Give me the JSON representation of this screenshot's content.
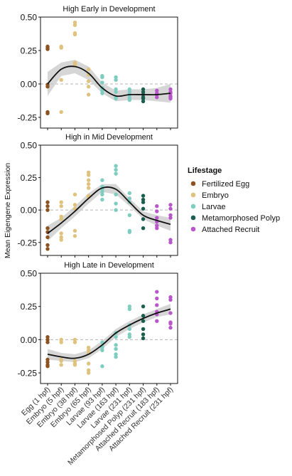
{
  "ylabel": "Mean Eigengene Expression",
  "legend": {
    "title": "Lifestage",
    "items": [
      {
        "label": "Fertilized Egg",
        "color": "#8c5320"
      },
      {
        "label": "Embryo",
        "color": "#dfc27e"
      },
      {
        "label": "Larvae",
        "color": "#7fcdc0"
      },
      {
        "label": "Metamorphosed Polyp",
        "color": "#1b5e4f"
      },
      {
        "label": "Attached Recruit",
        "color": "#b857c9"
      }
    ]
  },
  "categories": [
    "Egg (1 hpf)",
    "Embryo (5 hpf)",
    "Embryo (38 hpf)",
    "Embryo (65 hpf)",
    "Larvae (93 hpf)",
    "Larvae (163 hpf)",
    "Larvae (231 hpf)",
    "Metamorphosed Polyp (231 hpf)",
    "Attached Recruit (183 hpf)",
    "Attached Recruit (231 hpf)"
  ],
  "category_lifestage": [
    0,
    1,
    1,
    1,
    2,
    2,
    2,
    3,
    4,
    4
  ],
  "chart_data": [
    {
      "type": "scatter",
      "title": "High Early in Development",
      "ylim": [
        -0.33,
        0.5
      ],
      "yticks": [
        "0.50",
        "0.25",
        "0.00",
        "-0.25"
      ],
      "ytick_values": [
        0.5,
        0.25,
        0.0,
        -0.25
      ],
      "reference_line": 0,
      "points": [
        [
          0.27,
          0.28,
          0.26,
          -0.02,
          -0.22,
          -0.21,
          -0.005
        ],
        [
          0.28,
          0.27,
          0.03,
          -0.21
        ],
        [
          0.46,
          0.44,
          0.38,
          0.37,
          0.16,
          0.15,
          0.14
        ],
        [
          0.11,
          0.07,
          0.02,
          -0.02,
          -0.08
        ],
        [
          0.06,
          0.05,
          0.01,
          -0.03,
          -0.05,
          -0.07
        ],
        [
          0.05,
          0.03,
          -0.04,
          -0.06,
          -0.1,
          -0.11
        ],
        [
          -0.04,
          -0.06,
          -0.08,
          -0.1,
          -0.11,
          -0.12
        ],
        [
          -0.04,
          -0.06,
          -0.08,
          -0.1,
          -0.11,
          -0.13
        ],
        [
          -0.05,
          -0.07,
          -0.08,
          -0.1
        ],
        [
          -0.04,
          -0.06,
          -0.07,
          -0.09,
          -0.1,
          -0.11
        ]
      ],
      "trend": [
        0.0,
        0.11,
        0.13,
        0.08,
        -0.03,
        -0.09,
        -0.08,
        -0.08,
        -0.08,
        -0.07
      ],
      "band": [
        0.09,
        0.05,
        0.05,
        0.05,
        0.04,
        0.04,
        0.04,
        0.04,
        0.05,
        0.07
      ]
    },
    {
      "type": "scatter",
      "title": "High in Mid Development",
      "ylim": [
        -0.35,
        0.5
      ],
      "yticks": [
        "0.50",
        "0.25",
        "0.00",
        "-0.25"
      ],
      "ytick_values": [
        0.5,
        0.25,
        0.0,
        -0.25
      ],
      "reference_line": 0,
      "points": [
        [
          0.06,
          0.03,
          0.0,
          -0.14,
          -0.17,
          -0.21,
          -0.27,
          -0.3
        ],
        [
          0.06,
          0.03,
          -0.05,
          -0.07,
          -0.18,
          -0.21,
          -0.23
        ],
        [
          0.12,
          0.04,
          0.01,
          -0.16,
          -0.2
        ],
        [
          0.29,
          0.27,
          0.23,
          0.2,
          0.17,
          0.11,
          0.1
        ],
        [
          0.23,
          0.18,
          0.16,
          0.14,
          0.12,
          0.08
        ],
        [
          0.34,
          0.31,
          0.28,
          0.12,
          0.05,
          0.0
        ],
        [
          0.13,
          0.09,
          0.06,
          -0.04,
          -0.16,
          -0.17
        ],
        [
          0.11,
          0.08,
          0.06,
          0.01,
          -0.07,
          -0.14
        ],
        [
          0.03,
          -0.01,
          -0.06,
          -0.09,
          -0.12,
          -0.14
        ],
        [
          0.04,
          0.01,
          -0.04,
          -0.06,
          -0.23,
          -0.25
        ]
      ],
      "trend": [
        -0.18,
        -0.1,
        -0.01,
        0.09,
        0.17,
        0.16,
        0.06,
        -0.04,
        -0.08,
        -0.11
      ],
      "band": [
        0.06,
        0.04,
        0.04,
        0.04,
        0.03,
        0.04,
        0.03,
        0.03,
        0.04,
        0.05
      ]
    },
    {
      "type": "scatter",
      "title": "High Late in Development",
      "ylim": [
        -0.33,
        0.5
      ],
      "yticks": [
        "0.50",
        "0.25",
        "0.00",
        "-0.25"
      ],
      "ytick_values": [
        0.5,
        0.25,
        0.0,
        -0.25
      ],
      "reference_line": 0,
      "points": [
        [
          0.02,
          0.0,
          -0.02,
          -0.15,
          -0.17,
          -0.19,
          -0.2
        ],
        [
          0.0,
          -0.02,
          -0.15,
          -0.16,
          -0.19
        ],
        [
          0.0,
          -0.02,
          -0.16,
          -0.18,
          -0.19
        ],
        [
          -0.06,
          -0.08,
          -0.1,
          -0.18,
          -0.23,
          -0.25
        ],
        [
          -0.02,
          -0.05,
          -0.06,
          -0.08,
          -0.2
        ],
        [
          0.05,
          0.02,
          -0.04,
          -0.07,
          -0.11,
          -0.13
        ],
        [
          0.25,
          0.23,
          0.11,
          0.08,
          0.04,
          0.02
        ],
        [
          0.25,
          0.18,
          0.14,
          0.08,
          0.04,
          0.01
        ],
        [
          0.36,
          0.31,
          0.26,
          0.21,
          0.19,
          0.14
        ],
        [
          0.32,
          0.3,
          0.2,
          0.13,
          0.12,
          0.09
        ]
      ],
      "trend": [
        -0.11,
        -0.13,
        -0.14,
        -0.11,
        -0.04,
        0.05,
        0.11,
        0.16,
        0.2,
        0.23
      ],
      "band": [
        0.04,
        0.03,
        0.03,
        0.03,
        0.03,
        0.03,
        0.03,
        0.03,
        0.03,
        0.04
      ]
    }
  ]
}
